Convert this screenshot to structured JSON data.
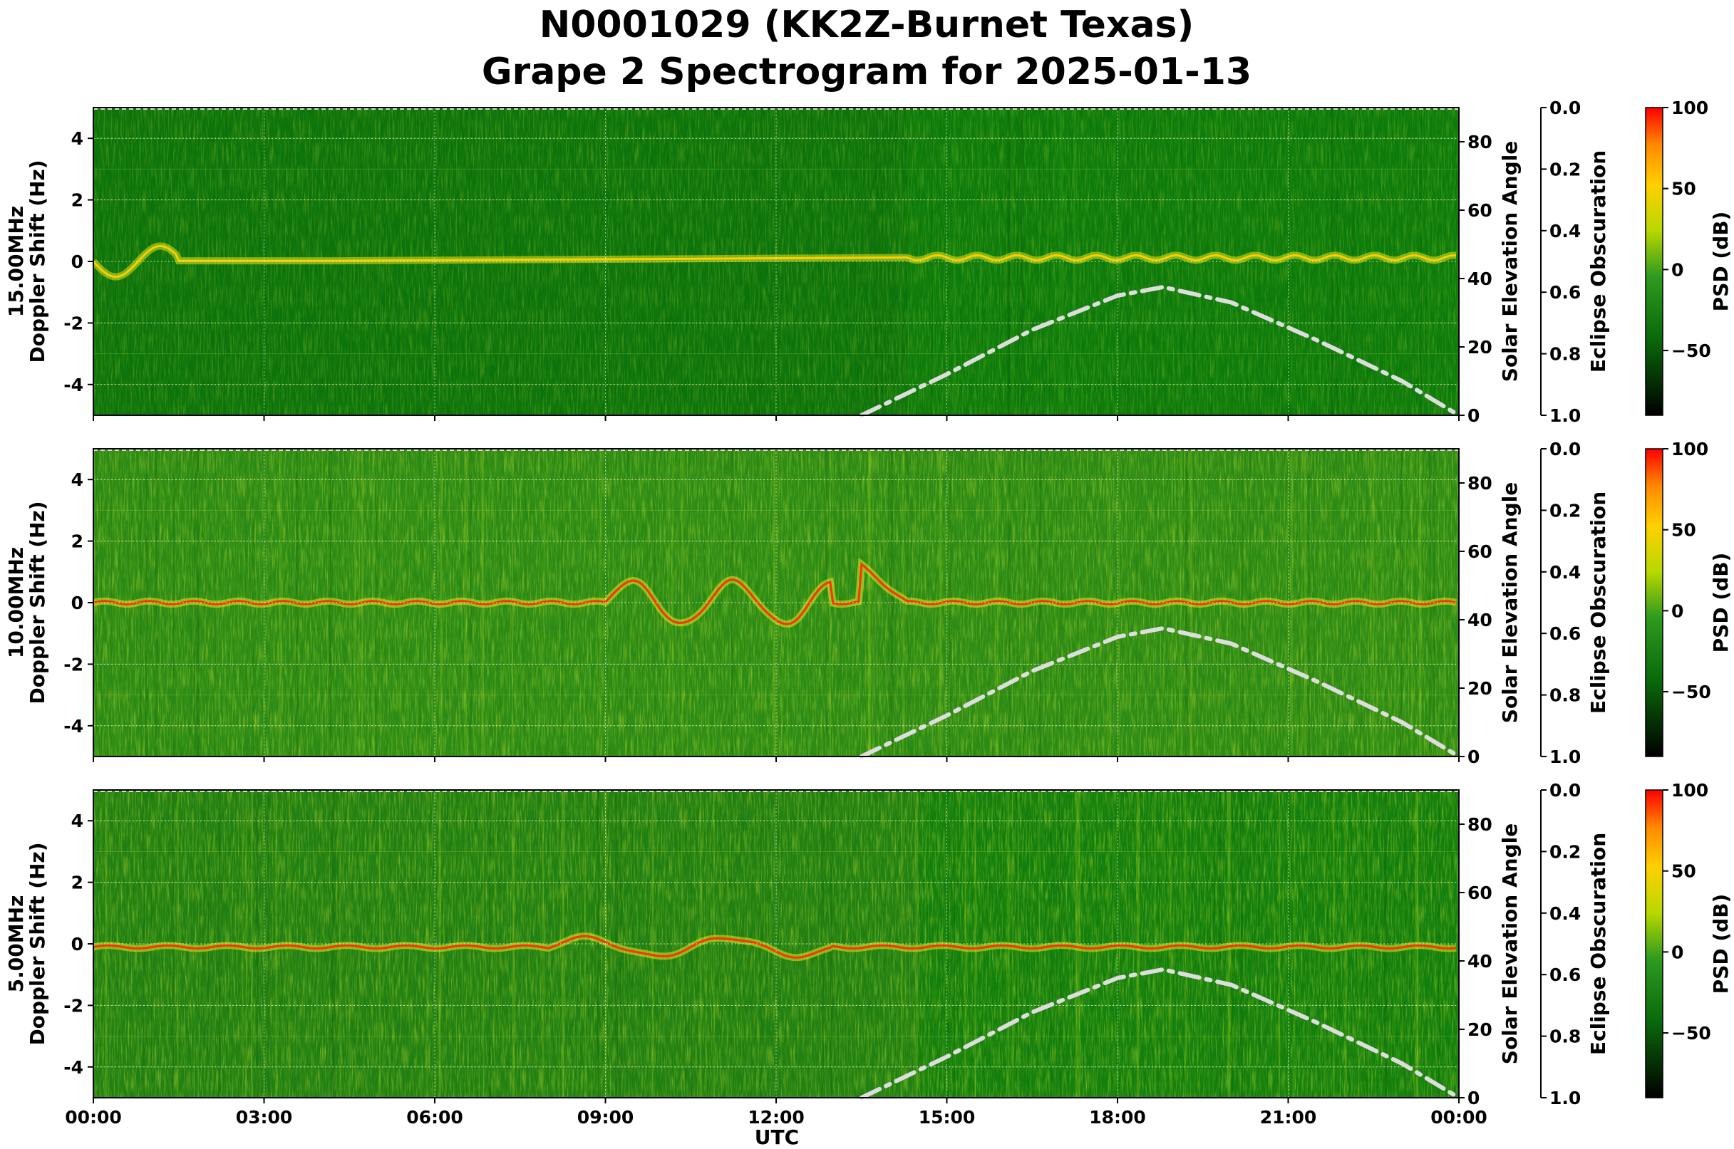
{
  "title_line1": "N0001029 (KK2Z-Burnet Texas)",
  "title_line2": "Grape 2 Spectrogram for 2025-01-13",
  "x_axis": {
    "label": "UTC",
    "ticks": [
      "00:00",
      "03:00",
      "06:00",
      "09:00",
      "12:00",
      "15:00",
      "18:00",
      "21:00",
      "00:00"
    ]
  },
  "chart_data": [
    {
      "type": "heatmap",
      "panel": "15.00MHz",
      "ylabel": "Doppler Shift (Hz)",
      "ylabel_prefix": "15.00MHz",
      "ylim": [
        -5,
        5
      ],
      "yticks": [
        4,
        2,
        0,
        -2,
        -4
      ],
      "xlim_hours": [
        0,
        24
      ],
      "dominant_colors": [
        "#0b7a0b",
        "#39a11c",
        "#d9e81a"
      ],
      "carrier_trace": {
        "strong_start_hour": 14.3,
        "offset_hz": 0.1
      },
      "solar_elevation": {
        "label": "Solar Elevation Angle",
        "ticks": [
          80,
          60,
          40,
          20,
          0
        ],
        "range": [
          0,
          90
        ],
        "curve": [
          [
            13.5,
            0
          ],
          [
            15,
            12
          ],
          [
            16.5,
            25
          ],
          [
            18,
            35
          ],
          [
            18.8,
            37.5
          ],
          [
            20,
            33
          ],
          [
            21.5,
            22
          ],
          [
            23,
            10
          ],
          [
            24,
            0
          ]
        ],
        "style": "dash-dot",
        "color": "#dddddd"
      },
      "eclipse_obscuration": {
        "label": "Eclipse Obscuration",
        "ticks": [
          "0.0",
          "0.2",
          "0.4",
          "0.6",
          "0.8",
          "1.0"
        ]
      },
      "colorbar": {
        "label": "PSD (dB)",
        "ticks": [
          "100",
          "50",
          "0",
          "−50"
        ],
        "range": [
          -90,
          100
        ],
        "colors": [
          "#ff0000",
          "#ffcc00",
          "#cccc00",
          "#3aa83a",
          "#0a6a0a",
          "#000000"
        ]
      }
    },
    {
      "type": "heatmap",
      "panel": "10.00MHz",
      "ylabel": "Doppler Shift (Hz)",
      "ylabel_prefix": "10.00MHz",
      "ylim": [
        -5,
        5
      ],
      "yticks": [
        4,
        2,
        0,
        -2,
        -4
      ],
      "xlim_hours": [
        0,
        24
      ],
      "dominant_colors": [
        "#2a8a15",
        "#9fd420",
        "#ff2a00"
      ],
      "carrier_trace": {
        "offset_hz": 0.0,
        "max_dev_hz": 1.8
      },
      "solar_elevation": {
        "label": "Solar Elevation Angle",
        "ticks": [
          80,
          60,
          40,
          20,
          0
        ],
        "range": [
          0,
          90
        ],
        "curve": [
          [
            13.5,
            0
          ],
          [
            15,
            12
          ],
          [
            16.5,
            25
          ],
          [
            18,
            35
          ],
          [
            18.8,
            37.5
          ],
          [
            20,
            33
          ],
          [
            21.5,
            22
          ],
          [
            23,
            10
          ],
          [
            24,
            0
          ]
        ],
        "style": "dash-dot",
        "color": "#dddddd"
      },
      "eclipse_obscuration": {
        "label": "Eclipse Obscuration",
        "ticks": [
          "0.0",
          "0.2",
          "0.4",
          "0.6",
          "0.8",
          "1.0"
        ]
      },
      "colorbar": {
        "label": "PSD (dB)",
        "ticks": [
          "100",
          "50",
          "0",
          "−50"
        ],
        "range": [
          -90,
          100
        ],
        "colors": [
          "#ff0000",
          "#ffcc00",
          "#cccc00",
          "#3aa83a",
          "#0a6a0a",
          "#000000"
        ]
      }
    },
    {
      "type": "heatmap",
      "panel": "5.00MHz",
      "ylabel": "Doppler Shift (Hz)",
      "ylabel_prefix": "5.00MHz",
      "ylim": [
        -5,
        5
      ],
      "yticks": [
        4,
        2,
        0,
        -2,
        -4
      ],
      "xlim_hours": [
        0,
        24
      ],
      "dominant_colors": [
        "#1f7f12",
        "#b5dc20",
        "#ff3300"
      ],
      "carrier_trace": {
        "offset_hz": 0.0,
        "max_dev_hz": 1.0
      },
      "solar_elevation": {
        "label": "Solar Elevation Angle",
        "ticks": [
          80,
          60,
          40,
          20,
          0
        ],
        "range": [
          0,
          90
        ],
        "curve": [
          [
            13.5,
            0
          ],
          [
            15,
            12
          ],
          [
            16.5,
            25
          ],
          [
            18,
            35
          ],
          [
            18.8,
            37.5
          ],
          [
            20,
            33
          ],
          [
            21.5,
            22
          ],
          [
            23,
            10
          ],
          [
            24,
            0
          ]
        ],
        "style": "dash-dot",
        "color": "#dddddd"
      },
      "eclipse_obscuration": {
        "label": "Eclipse Obscuration",
        "ticks": [
          "0.0",
          "0.2",
          "0.4",
          "0.6",
          "0.8",
          "1.0"
        ]
      },
      "colorbar": {
        "label": "PSD (dB)",
        "ticks": [
          "100",
          "50",
          "0",
          "−50"
        ],
        "range": [
          -90,
          100
        ],
        "colors": [
          "#ff0000",
          "#ffcc00",
          "#cccc00",
          "#3aa83a",
          "#0a6a0a",
          "#000000"
        ]
      }
    }
  ]
}
